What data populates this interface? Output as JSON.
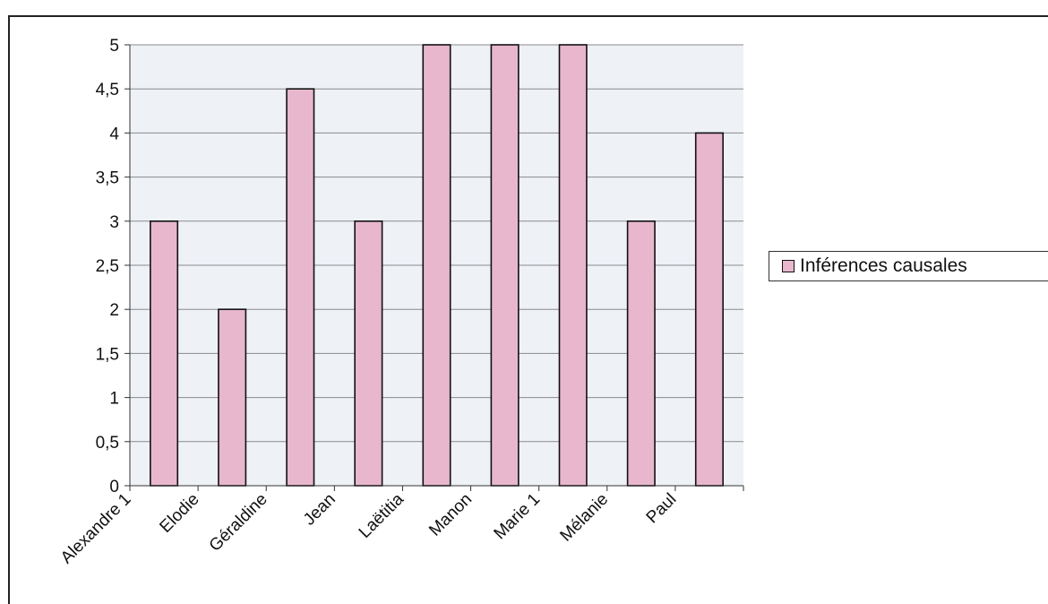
{
  "chart_data": {
    "type": "bar",
    "categories": [
      "Alexandre 1",
      "Elodie",
      "Géraldine",
      "Jean",
      "Laëtitia",
      "Manon",
      "Marie 1",
      "Mélanie",
      "Paul"
    ],
    "series": [
      {
        "name": "Inférences causales",
        "values": [
          3,
          2,
          4.5,
          3,
          5,
          5,
          5,
          3,
          4
        ]
      }
    ],
    "ylim": [
      0,
      5
    ],
    "yticks": [
      "0",
      "0,5",
      "1",
      "1,5",
      "2",
      "2,5",
      "3",
      "3,5",
      "4",
      "4,5",
      "5"
    ],
    "grid": "horizontal",
    "legend_position": "right",
    "bar_color": "#e8b7cd",
    "bar_border_color": "#111111",
    "plot_background": "#eef1f6"
  }
}
